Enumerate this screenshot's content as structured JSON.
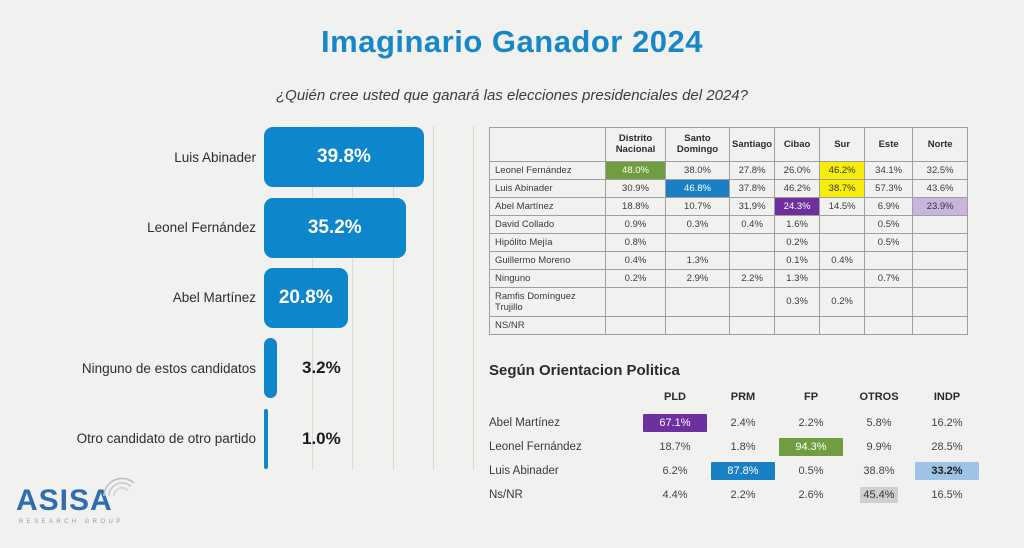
{
  "page": {
    "title": "Imaginario Ganador 2024",
    "subtitle": "¿Quién cree usted que ganará las elecciones presidenciales del 2024?"
  },
  "logo": {
    "name": "ASISA",
    "tagline": "RESEARCH GROUP"
  },
  "colors": {
    "accent_blue": "#1787c8",
    "bar_blue": "#0d86cb",
    "table_blue": "#1a80c4",
    "green": "#6f9d3f",
    "yellow": "#f6ee0a",
    "purple": "#6e2f9f",
    "light_purple": "#c9b4de",
    "light_blue": "#9dc3e6",
    "gray_highlight": "#cfcfcf"
  },
  "chart_data": [
    {
      "type": "bar",
      "orientation": "horizontal",
      "title": "Imaginario Ganador 2024",
      "categories": [
        "Luis Abinader",
        "Leonel Fernández",
        "Abel Martínez",
        "Ninguno de estos candidatos",
        "Otro candidato de otro partido"
      ],
      "values": [
        39.8,
        35.2,
        20.8,
        3.2,
        1.0
      ],
      "value_labels": [
        "39.8%",
        "35.2%",
        "20.8%",
        "3.2%",
        "1.0%"
      ],
      "xlim": [
        0,
        50
      ],
      "grid": true,
      "legend": "none"
    },
    {
      "type": "table",
      "name": "region-breakdown",
      "columns": [
        "Distrito Nacional",
        "Santo Domingo",
        "Santiago",
        "Cibao",
        "Sur",
        "Este",
        "Norte"
      ],
      "rows": [
        {
          "name": "Leonel Fernández",
          "values": [
            "48.0%",
            "38.0%",
            "27.8%",
            "26.0%",
            "46.2%",
            "34.1%",
            "32.5%"
          ],
          "highlights": {
            "0": "green",
            "4": "yellow"
          }
        },
        {
          "name": "Luis Abinader",
          "values": [
            "30.9%",
            "46.8%",
            "37.8%",
            "46.2%",
            "38.7%",
            "57.3%",
            "43.6%"
          ],
          "highlights": {
            "1": "blue",
            "4": "yellow"
          }
        },
        {
          "name": "Abel Martínez",
          "values": [
            "18.8%",
            "10.7%",
            "31.9%",
            "24.3%",
            "14.5%",
            "6.9%",
            "23.9%"
          ],
          "highlights": {
            "3": "purple",
            "6": "light_purple"
          }
        },
        {
          "name": "David Collado",
          "values": [
            "0.9%",
            "0.3%",
            "0.4%",
            "1.6%",
            "",
            "0.5%",
            ""
          ]
        },
        {
          "name": "Hipólito Mejía",
          "values": [
            "0.8%",
            "",
            "",
            "0.2%",
            "",
            "0.5%",
            ""
          ]
        },
        {
          "name": "Guillermo Moreno",
          "values": [
            "0.4%",
            "1.3%",
            "",
            "0.1%",
            "0.4%",
            "",
            ""
          ]
        },
        {
          "name": "Ninguno",
          "values": [
            "0.2%",
            "2.9%",
            "2.2%",
            "1.3%",
            "",
            "0.7%",
            ""
          ]
        },
        {
          "name": "Ramfis Domínguez Trujillo",
          "values": [
            "",
            "",
            "",
            "0.3%",
            "0.2%",
            "",
            ""
          ]
        },
        {
          "name": "NS/NR",
          "values": [
            "",
            "",
            "",
            "",
            "",
            "",
            ""
          ]
        }
      ]
    },
    {
      "type": "table",
      "name": "orientation-breakdown",
      "title": "Según Orientacion  Politica",
      "columns": [
        "PLD",
        "PRM",
        "FP",
        "OTROS",
        "INDP"
      ],
      "rows": [
        {
          "name": "Abel Martínez",
          "values": [
            "67.1%",
            "2.4%",
            "2.2%",
            "5.8%",
            "16.2%"
          ],
          "highlights": {
            "0": "purple"
          }
        },
        {
          "name": "Leonel Fernández",
          "values": [
            "18.7%",
            "1.8%",
            "94.3%",
            "9.9%",
            "28.5%"
          ],
          "highlights": {
            "2": "green"
          }
        },
        {
          "name": "Luis Abinader",
          "values": [
            "6.2%",
            "87.8%",
            "0.5%",
            "38.8%",
            "33.2%"
          ],
          "highlights": {
            "1": "blue",
            "4": "light_blue"
          }
        },
        {
          "name": "Ns/NR",
          "values": [
            "4.4%",
            "2.2%",
            "2.6%",
            "45.4%",
            "16.5%"
          ],
          "highlights": {
            "3": "gray"
          }
        }
      ]
    }
  ]
}
